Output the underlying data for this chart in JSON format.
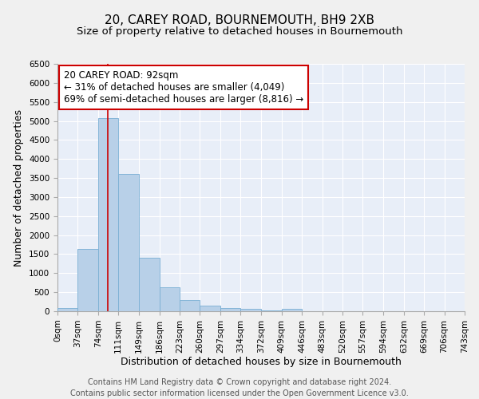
{
  "title": "20, CAREY ROAD, BOURNEMOUTH, BH9 2XB",
  "subtitle": "Size of property relative to detached houses in Bournemouth",
  "xlabel": "Distribution of detached houses by size in Bournemouth",
  "ylabel": "Number of detached properties",
  "footer_line1": "Contains HM Land Registry data © Crown copyright and database right 2024.",
  "footer_line2": "Contains public sector information licensed under the Open Government Licence v3.0.",
  "bar_color": "#b8d0e8",
  "bar_edge_color": "#7aafd4",
  "fig_bg_color": "#f0f0f0",
  "axes_bg_color": "#e8eef8",
  "grid_color": "#ffffff",
  "annotation_box_color": "#cc0000",
  "annotation_line_color": "#cc0000",
  "annotation_text": "20 CAREY ROAD: 92sqm\n← 31% of detached houses are smaller (4,049)\n69% of semi-detached houses are larger (8,816) →",
  "property_size_sqm": 92,
  "bin_edges": [
    0,
    37,
    74,
    111,
    149,
    186,
    223,
    260,
    297,
    334,
    372,
    409,
    446,
    483,
    520,
    557,
    594,
    632,
    669,
    706,
    743
  ],
  "bin_labels": [
    "0sqm",
    "37sqm",
    "74sqm",
    "111sqm",
    "149sqm",
    "186sqm",
    "223sqm",
    "260sqm",
    "297sqm",
    "334sqm",
    "372sqm",
    "409sqm",
    "446sqm",
    "483sqm",
    "520sqm",
    "557sqm",
    "594sqm",
    "632sqm",
    "669sqm",
    "706sqm",
    "743sqm"
  ],
  "bar_heights": [
    80,
    1630,
    5080,
    3600,
    1410,
    620,
    300,
    150,
    90,
    55,
    30,
    70,
    0,
    0,
    0,
    0,
    0,
    0,
    0,
    0
  ],
  "ylim": [
    0,
    6500
  ],
  "yticks": [
    0,
    500,
    1000,
    1500,
    2000,
    2500,
    3000,
    3500,
    4000,
    4500,
    5000,
    5500,
    6000,
    6500
  ],
  "title_fontsize": 11,
  "subtitle_fontsize": 9.5,
  "xlabel_fontsize": 9,
  "ylabel_fontsize": 9,
  "tick_fontsize": 7.5,
  "annotation_fontsize": 8.5,
  "footer_fontsize": 7
}
